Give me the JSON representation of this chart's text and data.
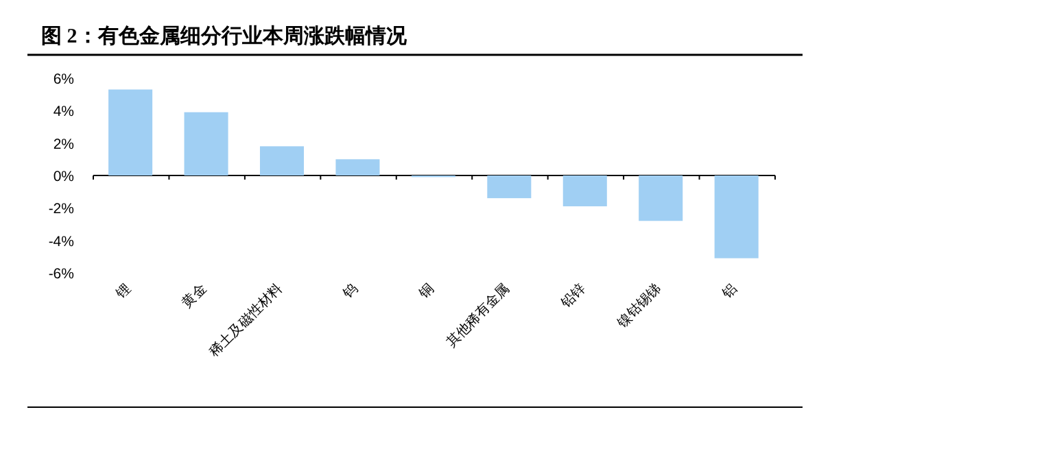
{
  "chart_data": {
    "type": "bar",
    "title": "图 2：有色金属细分行业本周涨跌幅情况",
    "categories": [
      "锂",
      "黄金",
      "稀土及磁性材料",
      "钨",
      "铜",
      "其他稀有金属",
      "铅锌",
      "镍钴锡锑",
      "铝"
    ],
    "values": [
      5.3,
      3.9,
      1.8,
      1.0,
      -0.1,
      -1.4,
      -1.9,
      -2.8,
      -5.1
    ],
    "color": "#a0cff3",
    "ylim": [
      -6,
      6
    ],
    "yticks": [
      {
        "value": -6,
        "label": "-6%"
      },
      {
        "value": -4,
        "label": "-4%"
      },
      {
        "value": -2,
        "label": "-2%"
      },
      {
        "value": 0,
        "label": "0%"
      },
      {
        "value": 2,
        "label": "2%"
      },
      {
        "value": 4,
        "label": "4%"
      },
      {
        "value": 6,
        "label": "6%"
      }
    ]
  }
}
